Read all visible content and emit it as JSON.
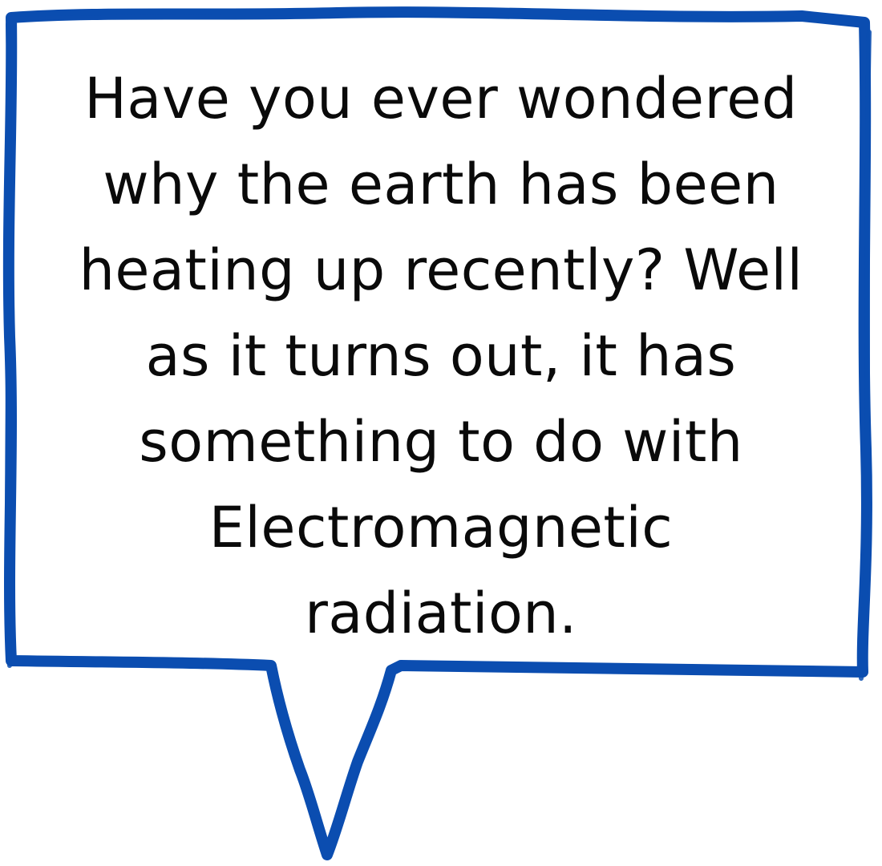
{
  "speech_bubble": {
    "border_color": "#0b4db0",
    "text_color": "#0a0a0a",
    "background": "#ffffff",
    "lines": [
      "Have you ever wondered",
      "why the earth has been",
      "heating up recently? Well",
      "as it turns out, it has",
      "something to do with",
      "Electromagnetic",
      "radiation."
    ]
  }
}
